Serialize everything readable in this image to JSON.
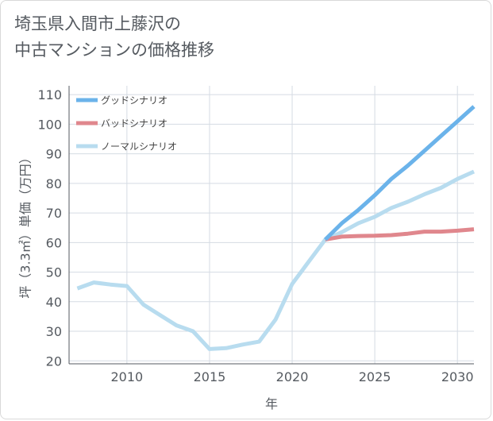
{
  "title_lines": [
    "埼玉県入間市上藤沢の",
    "中古マンションの価格推移"
  ],
  "chart_data": {
    "type": "line",
    "xlabel": "年",
    "ylabel": "坪（3.3㎡）単価（万円）",
    "xlim": [
      2006.5,
      2031
    ],
    "ylim": [
      19,
      113
    ],
    "x_ticks": [
      2010,
      2015,
      2020,
      2025,
      2030
    ],
    "y_ticks": [
      20,
      30,
      40,
      50,
      60,
      70,
      80,
      90,
      100,
      110
    ],
    "grid": true,
    "legend_position": "top-left",
    "series": [
      {
        "name": "グッドシナリオ",
        "color": "#6bb3ea",
        "x": [
          2022,
          2023,
          2024,
          2025,
          2026,
          2027,
          2028,
          2029,
          2030,
          2031
        ],
        "y": [
          61,
          66.5,
          71,
          76,
          81.5,
          86,
          91,
          96,
          101,
          106
        ]
      },
      {
        "name": "バッドシナリオ",
        "color": "#e0878d",
        "x": [
          2022,
          2023,
          2024,
          2025,
          2026,
          2027,
          2028,
          2029,
          2030,
          2031
        ],
        "y": [
          61,
          62,
          62.2,
          62.3,
          62.5,
          63,
          63.7,
          63.7,
          64,
          64.5
        ]
      },
      {
        "name": "ノーマルシナリオ",
        "color": "#b8dcef",
        "x": [
          2007,
          2008,
          2009,
          2010,
          2011,
          2012,
          2013,
          2014,
          2015,
          2016,
          2017,
          2018,
          2019,
          2020,
          2021,
          2022,
          2023,
          2024,
          2025,
          2026,
          2027,
          2028,
          2029,
          2030,
          2031
        ],
        "y": [
          44.5,
          46.5,
          45.8,
          45.3,
          39,
          35.5,
          32,
          30,
          24,
          24.3,
          25.5,
          26.5,
          34,
          46,
          53.5,
          61,
          63.5,
          66.5,
          68.7,
          71.7,
          73.8,
          76.3,
          78.5,
          81.5,
          84
        ]
      }
    ]
  }
}
